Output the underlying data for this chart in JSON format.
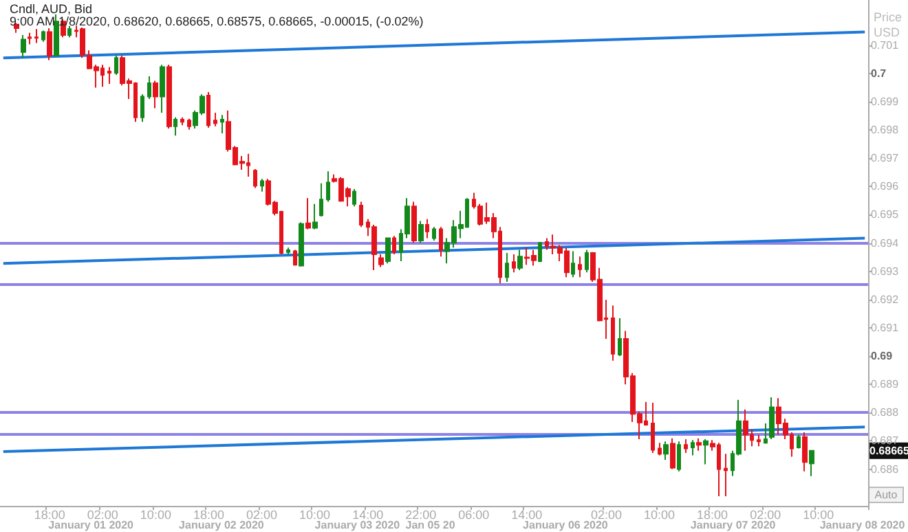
{
  "chart_data": {
    "type": "candlestick",
    "title": "Cndl, AUD, Bid",
    "subtitle": "9:00 AM 1/8/2020, 0.68620, 0.68665, 0.68575, 0.68665, -0.00015, (-0.02%)",
    "ylabel": "Price USD",
    "categories": [
      null,
      null,
      null,
      null,
      null,
      null,
      null,
      "18:00",
      null,
      null,
      null,
      null,
      null,
      null,
      null,
      "02:00",
      null,
      null,
      null,
      null,
      null,
      null,
      null,
      "10:00",
      null,
      null,
      null,
      null,
      null,
      null,
      null,
      "18:00",
      null,
      null,
      null,
      null,
      null,
      null,
      null,
      "02:00",
      null,
      null,
      null,
      null,
      null,
      null,
      null,
      "10:00",
      null,
      null,
      null,
      null,
      null,
      null,
      null,
      "14:00",
      null,
      null,
      null,
      null,
      null,
      null,
      null,
      "22:00",
      null,
      null,
      null,
      null,
      null,
      null,
      null,
      "06:00",
      null,
      null,
      null,
      null,
      null,
      null,
      null,
      "14:00",
      null,
      null,
      null,
      null,
      null,
      null,
      null,
      null,
      null,
      null,
      null,
      "02:00",
      null,
      null,
      null,
      null,
      null,
      null,
      null,
      "10:00",
      null,
      null,
      null,
      null,
      null,
      null,
      null,
      "18:00",
      null,
      null,
      null,
      null,
      null,
      null,
      null,
      "02:00",
      null,
      null,
      null,
      null,
      null,
      null,
      null,
      "10:00",
      null,
      null,
      null,
      null,
      null,
      null,
      null
    ],
    "ohlc": [
      null,
      null,
      [
        0.70173,
        0.70179,
        0.70144,
        0.7016
      ],
      [
        0.70076,
        0.70136,
        0.70055,
        0.7012
      ],
      [
        0.70128,
        0.70144,
        0.70103,
        0.70125
      ],
      [
        0.70128,
        0.70157,
        0.70108,
        0.70126
      ],
      [
        0.7012,
        0.70152,
        0.70112,
        0.70147
      ],
      [
        0.70147,
        0.7016,
        0.70047,
        0.70063
      ],
      [
        0.70063,
        0.70209,
        0.7006,
        0.70184
      ],
      [
        0.70184,
        0.70192,
        0.70128,
        0.70136
      ],
      [
        0.70136,
        0.70168,
        0.70128,
        0.70157
      ],
      [
        0.70152,
        0.70168,
        0.70128,
        0.7015
      ],
      [
        0.70157,
        0.70163,
        0.70055,
        0.70066
      ],
      [
        0.70063,
        0.70082,
        0.70015,
        0.70018
      ],
      [
        0.70023,
        0.70031,
        0.6995,
        0.70011
      ],
      [
        0.70018,
        0.70031,
        0.69953,
        0.69995
      ],
      [
        0.70007,
        0.70023,
        0.69963,
        0.70002
      ],
      [
        0.70002,
        0.70063,
        0.69995,
        0.70055
      ],
      [
        0.70055,
        0.70063,
        0.69958,
        0.69966
      ],
      [
        0.69973,
        0.69982,
        0.6991,
        0.69966
      ],
      [
        0.69966,
        0.69969,
        0.69829,
        0.69845
      ],
      [
        0.69845,
        0.69926,
        0.69829,
        0.69918
      ],
      [
        0.69918,
        0.6999,
        0.6991,
        0.69966
      ],
      [
        0.69966,
        0.69974,
        0.69877,
        0.69918
      ],
      [
        0.69918,
        0.70031,
        0.69861,
        0.70023
      ],
      [
        0.70023,
        0.70031,
        0.69805,
        0.69813
      ],
      [
        0.69813,
        0.69845,
        0.6978,
        0.69837
      ],
      [
        0.69837,
        0.69845,
        0.69817,
        0.69829
      ],
      [
        0.69834,
        0.6984,
        0.69801,
        0.69813
      ],
      [
        0.69817,
        0.69869,
        0.69805,
        0.69861
      ],
      [
        0.69861,
        0.69926,
        0.69853,
        0.69918
      ],
      [
        0.69922,
        0.69934,
        0.69808,
        0.69817
      ],
      [
        0.69834,
        0.69861,
        0.69813,
        0.69824
      ],
      [
        0.69829,
        0.69853,
        0.69788,
        0.69837
      ],
      [
        0.69829,
        0.69869,
        0.69724,
        0.69732
      ],
      [
        0.69737,
        0.69743,
        0.69675,
        0.69678
      ],
      [
        0.69688,
        0.69708,
        0.69659,
        0.69683
      ],
      [
        0.69683,
        0.69716,
        0.69635,
        0.69675
      ],
      [
        0.69656,
        0.69662,
        0.69595,
        0.69603
      ],
      [
        0.69603,
        0.69627,
        0.69582,
        0.69619
      ],
      [
        0.69619,
        0.69627,
        0.69533,
        0.69538
      ],
      [
        0.69543,
        0.69549,
        0.69498,
        0.69506
      ],
      [
        0.69511,
        0.69514,
        0.6936,
        0.69365
      ],
      [
        0.69368,
        0.69384,
        0.6936,
        0.69375
      ],
      [
        0.69371,
        0.69376,
        0.6932,
        0.69323
      ],
      [
        0.6932,
        0.69473,
        0.69317,
        0.69468
      ],
      [
        0.6947,
        0.69559,
        0.69449,
        0.69454
      ],
      [
        0.69454,
        0.69538,
        0.69449,
        0.69473
      ],
      [
        0.69498,
        0.69611,
        0.69494,
        0.69554
      ],
      [
        0.69554,
        0.69654,
        0.69546,
        0.69614
      ],
      [
        0.69627,
        0.69643,
        0.69614,
        0.69619
      ],
      [
        0.69627,
        0.69633,
        0.69546,
        0.69549
      ],
      [
        0.69591,
        0.69598,
        0.6953,
        0.69565
      ],
      [
        0.69538,
        0.69591,
        0.6953,
        0.69582
      ],
      [
        0.69533,
        0.69546,
        0.69457,
        0.69465
      ],
      [
        0.69473,
        0.69485,
        0.69425,
        0.69457
      ],
      [
        0.69457,
        0.69465,
        0.69304,
        0.6936
      ],
      [
        0.69347,
        0.6936,
        0.69315,
        0.69325
      ],
      [
        0.69336,
        0.6942,
        0.69328,
        0.69417
      ],
      [
        0.69417,
        0.69425,
        0.6936,
        0.69368
      ],
      [
        0.69368,
        0.69449,
        0.69336,
        0.69433
      ],
      [
        0.69433,
        0.69559,
        0.69417,
        0.6953
      ],
      [
        0.6953,
        0.69546,
        0.69401,
        0.69409
      ],
      [
        0.69409,
        0.69478,
        0.69401,
        0.69465
      ],
      [
        0.69465,
        0.69485,
        0.69417,
        0.69441
      ],
      [
        0.69417,
        0.69457,
        0.69409,
        0.69449
      ],
      [
        0.69449,
        0.69457,
        0.69352,
        0.69376
      ],
      [
        0.69371,
        0.69417,
        0.69328,
        0.69401
      ],
      [
        0.69401,
        0.69481,
        0.69384,
        0.69457
      ],
      [
        0.69452,
        0.69514,
        0.69417,
        0.69465
      ],
      [
        0.69457,
        0.69559,
        0.69454,
        0.69554
      ],
      [
        0.69554,
        0.69578,
        0.69522,
        0.6953
      ],
      [
        0.6953,
        0.69538,
        0.69462,
        0.69468
      ],
      [
        0.69489,
        0.69543,
        0.69468,
        0.69478
      ],
      [
        0.69489,
        0.69506,
        0.69417,
        0.69441
      ],
      [
        0.69441,
        0.69457,
        0.69258,
        0.69279
      ],
      [
        0.69279,
        0.69365,
        0.69263,
        0.69328
      ],
      [
        0.69333,
        0.6936,
        0.69296,
        0.69312
      ],
      [
        0.69312,
        0.69376,
        0.69304,
        0.69352
      ],
      [
        0.69349,
        0.69384,
        0.69323,
        0.69347
      ],
      [
        0.69355,
        0.69376,
        0.6932,
        0.69339
      ],
      [
        0.69336,
        0.69404,
        0.69333,
        0.69401
      ],
      [
        0.69404,
        0.69417,
        0.69376,
        0.69388
      ],
      [
        0.69388,
        0.6943,
        0.6936,
        0.69384
      ],
      [
        0.69384,
        0.69393,
        0.69336,
        0.69365
      ],
      [
        0.69371,
        0.69384,
        0.69279,
        0.69296
      ],
      [
        0.69291,
        0.69371,
        0.69279,
        0.69328
      ],
      [
        0.69323,
        0.69352,
        0.69279,
        0.69307
      ],
      [
        0.69307,
        0.69376,
        0.69296,
        0.69365
      ],
      [
        0.69365,
        0.69368,
        0.69263,
        0.69271
      ],
      [
        0.69271,
        0.69312,
        0.69123,
        0.69126
      ],
      [
        0.69134,
        0.69199,
        0.69061,
        0.69131
      ],
      [
        0.69134,
        0.69179,
        0.68984,
        0.69008
      ],
      [
        0.69005,
        0.69134,
        0.69,
        0.69061
      ],
      [
        0.69061,
        0.69089,
        0.689,
        0.68927
      ],
      [
        0.68929,
        0.6894,
        0.68767,
        0.68795
      ],
      [
        0.68795,
        0.68803,
        0.68706,
        0.68765
      ],
      [
        0.6877,
        0.68838,
        0.68754,
        0.68757
      ],
      [
        0.68762,
        0.68835,
        0.68657,
        0.68668
      ],
      [
        0.68673,
        0.68693,
        0.68649,
        0.68654
      ],
      [
        0.68654,
        0.68698,
        0.68633,
        0.68686
      ],
      [
        0.6869,
        0.68709,
        0.686,
        0.68605
      ],
      [
        0.686,
        0.68698,
        0.68592,
        0.68686
      ],
      [
        0.68686,
        0.68706,
        0.68657,
        0.68673
      ],
      [
        0.68677,
        0.68703,
        0.68649,
        0.68693
      ],
      [
        0.68693,
        0.68709,
        0.68665,
        0.68686
      ],
      [
        0.68686,
        0.68706,
        0.68617,
        0.68699
      ],
      [
        0.6869,
        0.68703,
        0.68665,
        0.6868
      ],
      [
        0.68685,
        0.68693,
        0.68504,
        0.686
      ],
      [
        0.68602,
        0.68654,
        0.68504,
        0.68596
      ],
      [
        0.68596,
        0.68665,
        0.68576,
        0.68654
      ],
      [
        0.68654,
        0.68845,
        0.68649,
        0.6877
      ],
      [
        0.6877,
        0.68811,
        0.68665,
        0.68722
      ],
      [
        0.68722,
        0.68741,
        0.68681,
        0.68703
      ],
      [
        0.68703,
        0.68722,
        0.68681,
        0.68698
      ],
      [
        0.68693,
        0.68762,
        0.6869,
        0.68706
      ],
      [
        0.68714,
        0.68854,
        0.68706,
        0.68819
      ],
      [
        0.68819,
        0.68851,
        0.68722,
        0.68762
      ],
      [
        0.68762,
        0.68778,
        0.68706,
        0.68722
      ],
      [
        0.68722,
        0.6873,
        0.68644,
        0.68673
      ],
      [
        0.68677,
        0.68722,
        0.68673,
        0.68714
      ],
      [
        0.68714,
        0.6873,
        0.68592,
        0.68625
      ],
      [
        0.6862,
        0.68665,
        0.68575,
        0.68665
      ],
      null,
      null,
      null,
      null,
      null,
      null,
      null,
      null
    ],
    "colors": [
      null,
      null,
      "#e3141b",
      "#13891b",
      "#e3141b",
      "#e3141b",
      "#13891b",
      "#e3141b",
      "#13891b",
      "#e3141b",
      "#13891b",
      "#e3141b",
      "#e3141b",
      "#e3141b",
      "#e3141b",
      "#e3141b",
      "#e3141b",
      "#13891b",
      "#e3141b",
      "#e3141b",
      "#e3141b",
      "#13891b",
      "#13891b",
      "#e3141b",
      "#13891b",
      "#e3141b",
      "#13891b",
      "#e3141b",
      "#e3141b",
      "#13891b",
      "#13891b",
      "#e3141b",
      "#e3141b",
      "#13891b",
      "#e3141b",
      "#e3141b",
      "#e3141b",
      "#e3141b",
      "#e3141b",
      "#13891b",
      "#e3141b",
      "#e3141b",
      "#e3141b",
      "#13891b",
      "#e3141b",
      "#13891b",
      "#e3141b",
      "#13891b",
      "#13891b",
      "#13891b",
      "#e3141b",
      "#e3141b",
      "#e3141b",
      "#13891b",
      "#e3141b",
      "#e3141b",
      "#e3141b",
      "#e3141b",
      "#13891b",
      "#e3141b",
      "#13891b",
      "#13891b",
      "#e3141b",
      "#13891b",
      "#e3141b",
      "#13891b",
      "#e3141b",
      "#13891b",
      "#13891b",
      "#13891b",
      "#13891b",
      "#e3141b",
      "#e3141b",
      "#e3141b",
      "#e3141b",
      "#e3141b",
      "#13891b",
      "#e3141b",
      "#13891b",
      "#e3141b",
      "#e3141b",
      "#13891b",
      "#e3141b",
      "#e3141b",
      "#e3141b",
      "#e3141b",
      "#13891b",
      "#e3141b",
      "#13891b",
      "#e3141b",
      "#e3141b",
      "#e3141b",
      "#e3141b",
      "#13891b",
      "#e3141b",
      "#e3141b",
      "#e3141b",
      "#e3141b",
      "#e3141b",
      "#e3141b",
      "#13891b",
      "#e3141b",
      "#13891b",
      "#e3141b",
      "#13891b",
      "#e3141b",
      "#13891b",
      "#e3141b",
      "#e3141b",
      "#e3141b",
      "#13891b",
      "#13891b",
      "#e3141b",
      "#e3141b",
      "#e3141b",
      "#13891b",
      "#13891b",
      "#e3141b",
      "#e3141b",
      "#e3141b",
      "#13891b",
      "#e3141b",
      "#13891b",
      null,
      null,
      null,
      null,
      null,
      null,
      null,
      null
    ],
    "series": [
      {
        "type": "line",
        "color": "#1f78d6",
        "values": [
          0.70055,
          null,
          null,
          null,
          null,
          null,
          null,
          null,
          null,
          null,
          null,
          null,
          null,
          null,
          null,
          null,
          null,
          null,
          null,
          null,
          null,
          null,
          null,
          null,
          null,
          null,
          null,
          null,
          null,
          null,
          null,
          null,
          null,
          null,
          null,
          null,
          null,
          null,
          null,
          null,
          null,
          null,
          null,
          null,
          null,
          null,
          null,
          null,
          null,
          null,
          null,
          null,
          null,
          null,
          null,
          null,
          null,
          null,
          null,
          null,
          null,
          null,
          null,
          null,
          null,
          null,
          null,
          null,
          null,
          null,
          null,
          null,
          null,
          null,
          null,
          null,
          null,
          null,
          null,
          null,
          null,
          null,
          null,
          null,
          null,
          null,
          null,
          null,
          null,
          null,
          null,
          null,
          null,
          null,
          null,
          null,
          null,
          null,
          null,
          null,
          null,
          null,
          null,
          null,
          null,
          null,
          null,
          null,
          null,
          null,
          null,
          null,
          null,
          null,
          null,
          null,
          null,
          null,
          null,
          null,
          null,
          null,
          null,
          null,
          null,
          null,
          null,
          null,
          null,
          null,
          0.70147
        ]
      },
      {
        "type": "line",
        "color": "#1f78d6",
        "values": [
          0.69328,
          null,
          null,
          null,
          null,
          null,
          null,
          null,
          null,
          null,
          null,
          null,
          null,
          null,
          null,
          null,
          null,
          null,
          null,
          null,
          null,
          null,
          null,
          null,
          null,
          null,
          null,
          null,
          null,
          null,
          null,
          null,
          null,
          null,
          null,
          null,
          null,
          null,
          null,
          null,
          null,
          null,
          null,
          null,
          null,
          null,
          null,
          null,
          null,
          null,
          null,
          null,
          null,
          null,
          null,
          null,
          null,
          null,
          null,
          null,
          null,
          null,
          null,
          null,
          null,
          null,
          null,
          null,
          null,
          null,
          null,
          null,
          null,
          null,
          null,
          null,
          null,
          null,
          null,
          null,
          null,
          null,
          null,
          null,
          null,
          null,
          null,
          null,
          null,
          null,
          null,
          null,
          null,
          null,
          null,
          null,
          null,
          null,
          null,
          null,
          null,
          null,
          null,
          null,
          null,
          null,
          null,
          null,
          null,
          null,
          null,
          null,
          null,
          null,
          null,
          null,
          null,
          null,
          null,
          null,
          null,
          null,
          null,
          null,
          null,
          null,
          null,
          null,
          null,
          null,
          0.69417
        ]
      },
      {
        "type": "line",
        "color": "#1f78d6",
        "values": [
          0.68662,
          null,
          null,
          null,
          null,
          null,
          null,
          null,
          null,
          null,
          null,
          null,
          null,
          null,
          null,
          null,
          null,
          null,
          null,
          null,
          null,
          null,
          null,
          null,
          null,
          null,
          null,
          null,
          null,
          null,
          null,
          null,
          null,
          null,
          null,
          null,
          null,
          null,
          null,
          null,
          null,
          null,
          null,
          null,
          null,
          null,
          null,
          null,
          null,
          null,
          null,
          null,
          null,
          null,
          null,
          null,
          null,
          null,
          null,
          null,
          null,
          null,
          null,
          null,
          null,
          null,
          null,
          null,
          null,
          null,
          null,
          null,
          null,
          null,
          null,
          null,
          null,
          null,
          null,
          null,
          null,
          null,
          null,
          null,
          null,
          null,
          null,
          null,
          null,
          null,
          null,
          null,
          null,
          null,
          null,
          null,
          null,
          null,
          null,
          null,
          null,
          null,
          null,
          null,
          null,
          null,
          null,
          null,
          null,
          null,
          null,
          null,
          null,
          null,
          null,
          null,
          null,
          null,
          null,
          null,
          null,
          null,
          null,
          null,
          null,
          null,
          null,
          null,
          null,
          null,
          0.68749
        ]
      }
    ],
    "ref_lines": [
      {
        "axis": "y",
        "value": 0.69401,
        "color": "#8c82e6"
      },
      {
        "axis": "y",
        "value": 0.69252,
        "color": "#8c82e6"
      },
      {
        "axis": "y",
        "value": 0.68803,
        "color": "#8c82e6"
      },
      {
        "axis": "y",
        "value": 0.68722,
        "color": "#8c82e6"
      }
    ],
    "ylim": [
      0.6847,
      0.7026
    ],
    "yticks": [
      0.686,
      0.687,
      0.688,
      0.689,
      0.69,
      0.691,
      0.692,
      0.693,
      0.694,
      0.695,
      0.696,
      0.697,
      0.698,
      0.699,
      0.7,
      0.701
    ],
    "annotations": [
      "January 01 2020",
      "January 02 2020",
      "January 03 2020",
      "Jan 05 20",
      "January 06 2020",
      "January 07 2020",
      "January 08 2020",
      "0.68665",
      "Auto"
    ],
    "grid": false
  }
}
